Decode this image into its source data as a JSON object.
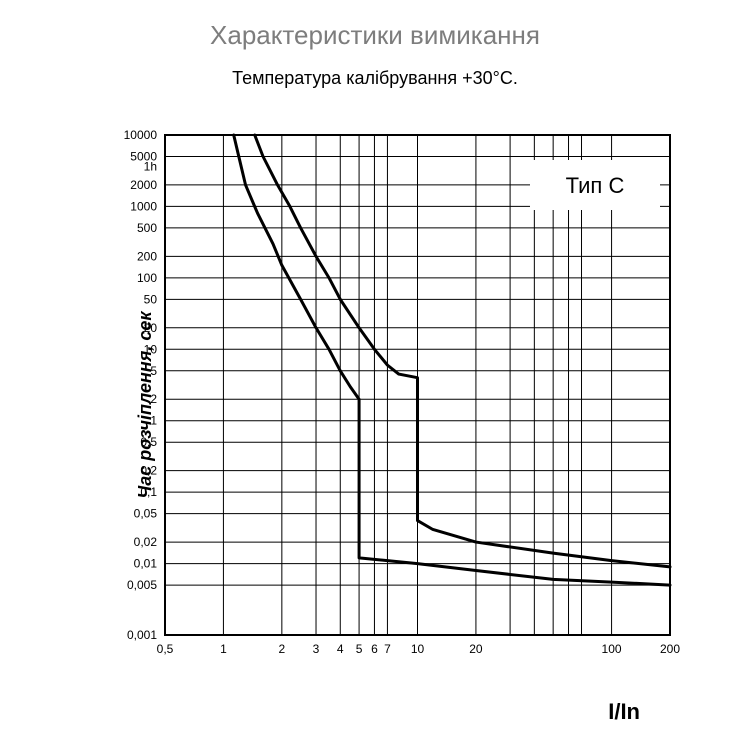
{
  "title": "Характеристики вимикання",
  "subtitle": "Температура калібрування +30°C.",
  "chart": {
    "type": "line",
    "type_label": "Тип C",
    "y_axis_label": "Час розчіплення, сек",
    "x_axis_label": "I/In",
    "background_color": "#ffffff",
    "grid_color": "#000000",
    "curve_color": "#000000",
    "title_color": "#7d7d7d",
    "title_fontsize": 26,
    "subtitle_fontsize": 18,
    "axis_label_fontsize": 18,
    "tick_fontsize": 12,
    "type_label_fontsize": 22,
    "line_width_grid": 1,
    "line_width_border": 2,
    "line_width_curve": 3,
    "x_scale": "log",
    "y_scale": "log",
    "xlim": [
      0.5,
      200
    ],
    "ylim": [
      0.001,
      10000
    ],
    "x_ticks": [
      0.5,
      1,
      2,
      3,
      4,
      5,
      6,
      7,
      10,
      20,
      100,
      200
    ],
    "x_tick_labels": [
      "0,5",
      "1",
      "2",
      "3",
      "4",
      "5",
      "6",
      "7",
      "10",
      "20",
      "100",
      "200"
    ],
    "y_ticks": [
      0.001,
      0.005,
      0.01,
      0.02,
      0.05,
      0.1,
      0.2,
      0.5,
      1,
      2,
      5,
      10,
      20,
      50,
      100,
      200,
      500,
      1000,
      2000,
      5000,
      10000
    ],
    "y_tick_labels": [
      "0,001",
      "0,005",
      "0,01",
      "0,02",
      "0,05",
      "0,1",
      "0,2",
      "0,5",
      "1",
      "2",
      "5",
      "10",
      "20",
      "50",
      "100",
      "200",
      "500",
      "1000",
      "2000",
      "5000",
      "10000"
    ],
    "y_tick_labels_extra": [
      "1h"
    ],
    "y_tick_extra_values": [
      3600
    ],
    "curves": [
      {
        "name": "lower",
        "points": [
          [
            1.13,
            10000
          ],
          [
            1.2,
            5000
          ],
          [
            1.3,
            2000
          ],
          [
            1.5,
            800
          ],
          [
            1.8,
            300
          ],
          [
            2.0,
            150
          ],
          [
            2.5,
            50
          ],
          [
            3.0,
            20
          ],
          [
            3.5,
            10
          ],
          [
            4.0,
            5
          ],
          [
            4.5,
            3
          ],
          [
            5.0,
            2
          ],
          [
            5.0,
            0.012
          ],
          [
            7.0,
            0.011
          ],
          [
            10,
            0.01
          ],
          [
            20,
            0.008
          ],
          [
            50,
            0.006
          ],
          [
            100,
            0.0055
          ],
          [
            200,
            0.005
          ]
        ]
      },
      {
        "name": "upper",
        "points": [
          [
            1.45,
            10000
          ],
          [
            1.6,
            5000
          ],
          [
            1.9,
            2000
          ],
          [
            2.2,
            1000
          ],
          [
            2.5,
            500
          ],
          [
            3.0,
            200
          ],
          [
            3.5,
            100
          ],
          [
            4.0,
            50
          ],
          [
            5.0,
            20
          ],
          [
            6.0,
            10
          ],
          [
            7.0,
            6
          ],
          [
            8.0,
            4.5
          ],
          [
            10.0,
            4
          ],
          [
            10.0,
            0.04
          ],
          [
            12,
            0.03
          ],
          [
            20,
            0.02
          ],
          [
            50,
            0.014
          ],
          [
            100,
            0.011
          ],
          [
            200,
            0.009
          ]
        ]
      }
    ]
  }
}
